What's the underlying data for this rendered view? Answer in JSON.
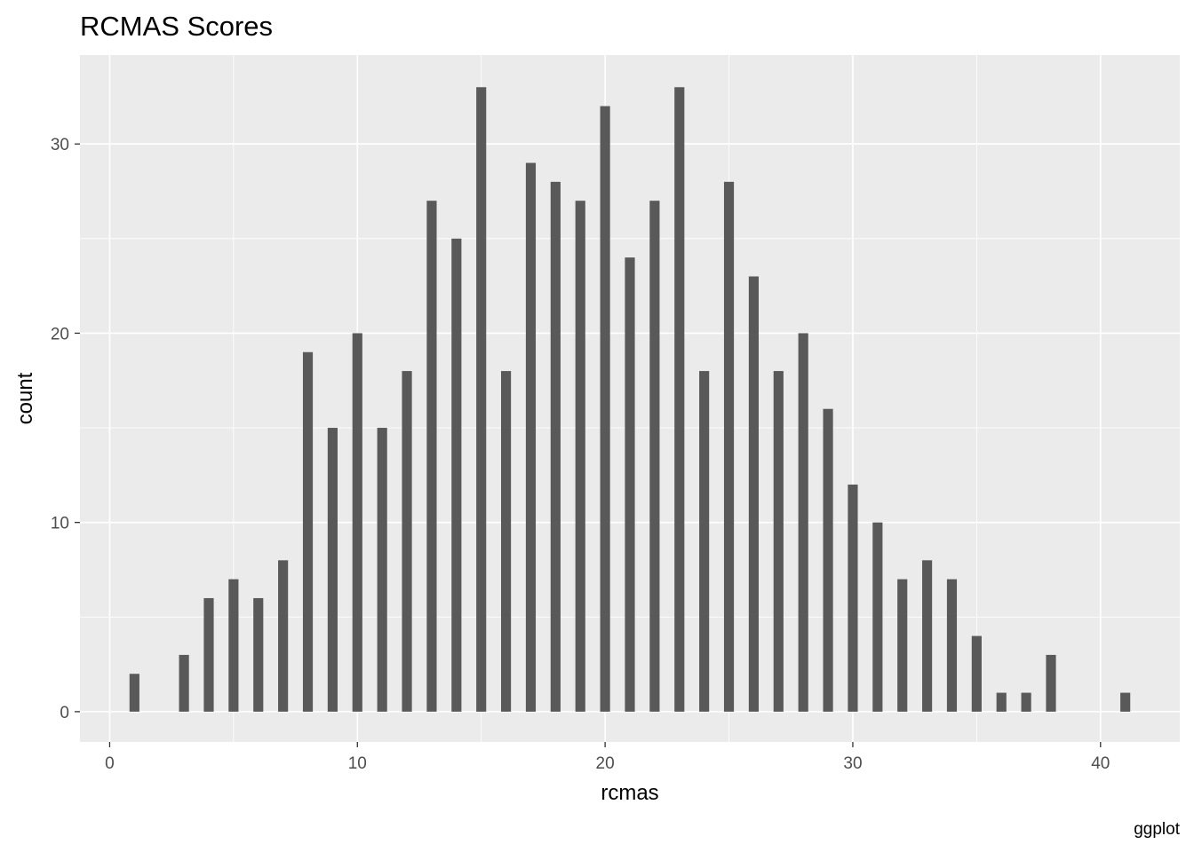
{
  "chart_data": {
    "type": "bar",
    "title": "RCMAS Scores",
    "xlabel": "rcmas",
    "ylabel": "count",
    "caption": "ggplot",
    "xlim": [
      -1.2,
      43.2
    ],
    "ylim": [
      -1.6,
      34.7
    ],
    "x_ticks": [
      0,
      10,
      20,
      30,
      40
    ],
    "y_ticks": [
      0,
      10,
      20,
      30
    ],
    "grid": true,
    "bar_color": "#595959",
    "panel_background": "#ebebeb",
    "points": [
      {
        "x": 1,
        "y": 2
      },
      {
        "x": 3,
        "y": 3
      },
      {
        "x": 4,
        "y": 6
      },
      {
        "x": 5,
        "y": 7
      },
      {
        "x": 6,
        "y": 6
      },
      {
        "x": 7,
        "y": 8
      },
      {
        "x": 8,
        "y": 19
      },
      {
        "x": 9,
        "y": 15
      },
      {
        "x": 10,
        "y": 20
      },
      {
        "x": 11,
        "y": 15
      },
      {
        "x": 12,
        "y": 18
      },
      {
        "x": 13,
        "y": 27
      },
      {
        "x": 14,
        "y": 25
      },
      {
        "x": 15,
        "y": 33
      },
      {
        "x": 16,
        "y": 18
      },
      {
        "x": 17,
        "y": 29
      },
      {
        "x": 18,
        "y": 28
      },
      {
        "x": 19,
        "y": 27
      },
      {
        "x": 20,
        "y": 32
      },
      {
        "x": 21,
        "y": 24
      },
      {
        "x": 22,
        "y": 27
      },
      {
        "x": 23,
        "y": 33
      },
      {
        "x": 24,
        "y": 18
      },
      {
        "x": 25,
        "y": 28
      },
      {
        "x": 26,
        "y": 23
      },
      {
        "x": 27,
        "y": 18
      },
      {
        "x": 28,
        "y": 20
      },
      {
        "x": 29,
        "y": 16
      },
      {
        "x": 30,
        "y": 12
      },
      {
        "x": 31,
        "y": 10
      },
      {
        "x": 32,
        "y": 7
      },
      {
        "x": 33,
        "y": 8
      },
      {
        "x": 34,
        "y": 7
      },
      {
        "x": 35,
        "y": 4
      },
      {
        "x": 36,
        "y": 1
      },
      {
        "x": 37,
        "y": 1
      },
      {
        "x": 38,
        "y": 3
      },
      {
        "x": 41,
        "y": 1
      }
    ]
  }
}
